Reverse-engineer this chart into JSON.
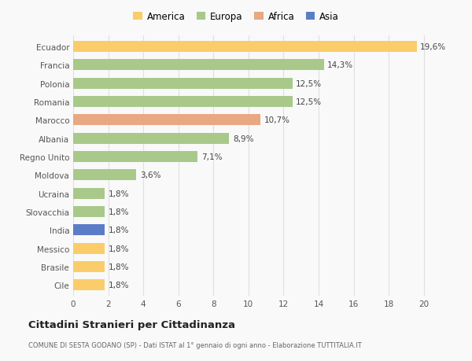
{
  "categories": [
    "Ecuador",
    "Francia",
    "Polonia",
    "Romania",
    "Marocco",
    "Albania",
    "Regno Unito",
    "Moldova",
    "Ucraina",
    "Slovacchia",
    "India",
    "Messico",
    "Brasile",
    "Cile"
  ],
  "values": [
    19.6,
    14.3,
    12.5,
    12.5,
    10.7,
    8.9,
    7.1,
    3.6,
    1.8,
    1.8,
    1.8,
    1.8,
    1.8,
    1.8
  ],
  "colors": [
    "#FACD6A",
    "#A8C98A",
    "#A8C98A",
    "#A8C98A",
    "#E8A882",
    "#A8C98A",
    "#A8C98A",
    "#A8C98A",
    "#A8C98A",
    "#A8C98A",
    "#5B7DC8",
    "#FACD6A",
    "#FACD6A",
    "#FACD6A"
  ],
  "labels": [
    "19,6%",
    "14,3%",
    "12,5%",
    "12,5%",
    "10,7%",
    "8,9%",
    "7,1%",
    "3,6%",
    "1,8%",
    "1,8%",
    "1,8%",
    "1,8%",
    "1,8%",
    "1,8%"
  ],
  "legend_labels": [
    "America",
    "Europa",
    "Africa",
    "Asia"
  ],
  "legend_colors": [
    "#FACD6A",
    "#A8C98A",
    "#E8A882",
    "#5B7DC8"
  ],
  "title": "Cittadini Stranieri per Cittadinanza",
  "subtitle": "COMUNE DI SESTA GODANO (SP) - Dati ISTAT al 1° gennaio di ogni anno - Elaborazione TUTTITALIA.IT",
  "xlim": [
    0,
    21
  ],
  "xticks": [
    0,
    2,
    4,
    6,
    8,
    10,
    12,
    14,
    16,
    18,
    20
  ],
  "background_color": "#f9f9f9",
  "grid_color": "#e0e0e0",
  "bar_height": 0.6,
  "label_fontsize": 7.5,
  "tick_fontsize": 7.5,
  "legend_fontsize": 8.5,
  "title_fontsize": 9.5,
  "subtitle_fontsize": 6.0
}
